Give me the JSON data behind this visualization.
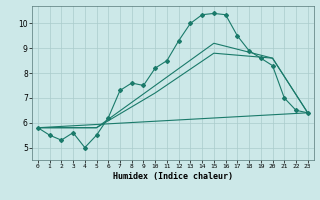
{
  "title": "",
  "xlabel": "Humidex (Indice chaleur)",
  "ylabel": "",
  "bg_color": "#cce8e8",
  "grid_color": "#aacccc",
  "line_color": "#1a7a6a",
  "xlim": [
    -0.5,
    23.5
  ],
  "ylim": [
    4.5,
    10.7
  ],
  "yticks": [
    5,
    6,
    7,
    8,
    9,
    10
  ],
  "xticks": [
    0,
    1,
    2,
    3,
    4,
    5,
    6,
    7,
    8,
    9,
    10,
    11,
    12,
    13,
    14,
    15,
    16,
    17,
    18,
    19,
    20,
    21,
    22,
    23
  ],
  "line1_x": [
    0,
    1,
    2,
    3,
    4,
    5,
    6,
    7,
    8,
    9,
    10,
    11,
    12,
    13,
    14,
    15,
    16,
    17,
    18,
    19,
    20,
    21,
    22,
    23
  ],
  "line1_y": [
    5.8,
    5.5,
    5.3,
    5.6,
    5.0,
    5.5,
    6.2,
    7.3,
    7.6,
    7.5,
    8.2,
    8.5,
    9.3,
    10.0,
    10.35,
    10.4,
    10.35,
    9.5,
    8.9,
    8.6,
    8.3,
    7.0,
    6.5,
    6.4
  ],
  "line2_x": [
    0,
    5,
    10,
    15,
    20,
    23
  ],
  "line2_y": [
    5.8,
    5.8,
    7.5,
    9.2,
    8.6,
    6.4
  ],
  "line3_x": [
    0,
    5,
    10,
    15,
    20,
    23
  ],
  "line3_y": [
    5.8,
    5.8,
    7.2,
    8.8,
    8.6,
    6.4
  ],
  "line4_x": [
    0,
    23
  ],
  "line4_y": [
    5.8,
    6.4
  ]
}
